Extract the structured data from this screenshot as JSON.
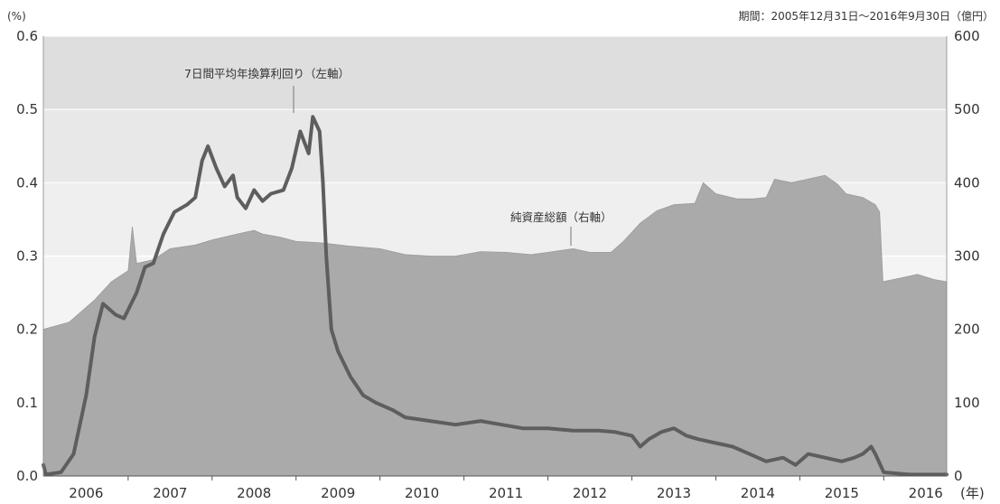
{
  "chart_data": {
    "type": "area",
    "title": "",
    "period_note": "期間：2005年12月31日～2016年9月30日（億円）",
    "left_unit": "(%)",
    "x_unit": "(年)",
    "x_tick_labels": [
      "2006",
      "2007",
      "2008",
      "2009",
      "2010",
      "2011",
      "2012",
      "2013",
      "2014",
      "2015",
      "2016"
    ],
    "y_left": {
      "range": [
        0,
        0.6
      ],
      "ticks": [
        "0.0",
        "0.1",
        "0.2",
        "0.3",
        "0.4",
        "0.5",
        "0.6"
      ]
    },
    "y_right": {
      "range": [
        0,
        600
      ],
      "ticks": [
        "0",
        "100",
        "200",
        "300",
        "400",
        "500",
        "600"
      ]
    },
    "grid": true,
    "series": [
      {
        "name": "純資産総額（右軸）",
        "kind": "area",
        "axis": "right",
        "color": "#aaaaaa",
        "points": [
          [
            2005.99,
            200
          ],
          [
            2006.3,
            210
          ],
          [
            2006.6,
            240
          ],
          [
            2006.8,
            265
          ],
          [
            2007.0,
            280
          ],
          [
            2007.05,
            340
          ],
          [
            2007.1,
            290
          ],
          [
            2007.3,
            295
          ],
          [
            2007.5,
            310
          ],
          [
            2007.8,
            315
          ],
          [
            2008.0,
            322
          ],
          [
            2008.3,
            330
          ],
          [
            2008.5,
            335
          ],
          [
            2008.6,
            330
          ],
          [
            2008.8,
            326
          ],
          [
            2009.0,
            320
          ],
          [
            2009.3,
            318
          ],
          [
            2009.6,
            314
          ],
          [
            2010.0,
            310
          ],
          [
            2010.3,
            302
          ],
          [
            2010.6,
            300
          ],
          [
            2010.9,
            300
          ],
          [
            2011.2,
            306
          ],
          [
            2011.5,
            305
          ],
          [
            2011.8,
            302
          ],
          [
            2012.0,
            305
          ],
          [
            2012.3,
            310
          ],
          [
            2012.5,
            305
          ],
          [
            2012.75,
            305
          ],
          [
            2012.9,
            320
          ],
          [
            2013.1,
            345
          ],
          [
            2013.3,
            362
          ],
          [
            2013.5,
            370
          ],
          [
            2013.75,
            372
          ],
          [
            2013.85,
            400
          ],
          [
            2014.0,
            385
          ],
          [
            2014.25,
            378
          ],
          [
            2014.45,
            378
          ],
          [
            2014.6,
            380
          ],
          [
            2014.7,
            405
          ],
          [
            2014.9,
            400
          ],
          [
            2015.1,
            405
          ],
          [
            2015.3,
            410
          ],
          [
            2015.45,
            398
          ],
          [
            2015.55,
            385
          ],
          [
            2015.75,
            380
          ],
          [
            2015.9,
            370
          ],
          [
            2015.95,
            360
          ],
          [
            2015.99,
            265
          ],
          [
            2016.2,
            270
          ],
          [
            2016.4,
            275
          ],
          [
            2016.6,
            268
          ],
          [
            2016.75,
            265
          ]
        ]
      },
      {
        "name": "7日間平均年換算利回り（左軸）",
        "kind": "line",
        "axis": "left",
        "color": "#5e5e5e",
        "points": [
          [
            2005.99,
            0.015
          ],
          [
            2006.02,
            0.002
          ],
          [
            2006.2,
            0.005
          ],
          [
            2006.35,
            0.03
          ],
          [
            2006.5,
            0.11
          ],
          [
            2006.6,
            0.19
          ],
          [
            2006.7,
            0.235
          ],
          [
            2006.85,
            0.22
          ],
          [
            2006.95,
            0.215
          ],
          [
            2007.1,
            0.25
          ],
          [
            2007.2,
            0.285
          ],
          [
            2007.3,
            0.29
          ],
          [
            2007.42,
            0.33
          ],
          [
            2007.55,
            0.36
          ],
          [
            2007.7,
            0.37
          ],
          [
            2007.8,
            0.38
          ],
          [
            2007.88,
            0.43
          ],
          [
            2007.95,
            0.45
          ],
          [
            2008.05,
            0.42
          ],
          [
            2008.15,
            0.395
          ],
          [
            2008.25,
            0.41
          ],
          [
            2008.3,
            0.38
          ],
          [
            2008.4,
            0.365
          ],
          [
            2008.5,
            0.39
          ],
          [
            2008.6,
            0.375
          ],
          [
            2008.7,
            0.385
          ],
          [
            2008.85,
            0.39
          ],
          [
            2008.95,
            0.42
          ],
          [
            2009.05,
            0.47
          ],
          [
            2009.15,
            0.44
          ],
          [
            2009.2,
            0.49
          ],
          [
            2009.28,
            0.47
          ],
          [
            2009.32,
            0.4
          ],
          [
            2009.36,
            0.3
          ],
          [
            2009.42,
            0.2
          ],
          [
            2009.5,
            0.17
          ],
          [
            2009.65,
            0.135
          ],
          [
            2009.8,
            0.11
          ],
          [
            2009.95,
            0.1
          ],
          [
            2010.15,
            0.09
          ],
          [
            2010.3,
            0.08
          ],
          [
            2010.6,
            0.075
          ],
          [
            2010.9,
            0.07
          ],
          [
            2011.2,
            0.075
          ],
          [
            2011.45,
            0.07
          ],
          [
            2011.7,
            0.065
          ],
          [
            2012.0,
            0.065
          ],
          [
            2012.3,
            0.062
          ],
          [
            2012.6,
            0.062
          ],
          [
            2012.8,
            0.06
          ],
          [
            2013.0,
            0.055
          ],
          [
            2013.1,
            0.04
          ],
          [
            2013.2,
            0.05
          ],
          [
            2013.35,
            0.06
          ],
          [
            2013.5,
            0.065
          ],
          [
            2013.65,
            0.055
          ],
          [
            2013.8,
            0.05
          ],
          [
            2014.0,
            0.045
          ],
          [
            2014.2,
            0.04
          ],
          [
            2014.4,
            0.03
          ],
          [
            2014.6,
            0.02
          ],
          [
            2014.8,
            0.025
          ],
          [
            2014.95,
            0.015
          ],
          [
            2015.1,
            0.03
          ],
          [
            2015.3,
            0.025
          ],
          [
            2015.5,
            0.02
          ],
          [
            2015.65,
            0.025
          ],
          [
            2015.75,
            0.03
          ],
          [
            2015.85,
            0.04
          ],
          [
            2015.9,
            0.03
          ],
          [
            2016.0,
            0.005
          ],
          [
            2016.3,
            0.002
          ],
          [
            2016.75,
            0.002
          ]
        ]
      }
    ],
    "annotations": [
      {
        "text": "7日間平均年換算利回り（左軸）",
        "series": 1
      },
      {
        "text": "純資産総額（右軸）",
        "series": 0
      }
    ]
  }
}
